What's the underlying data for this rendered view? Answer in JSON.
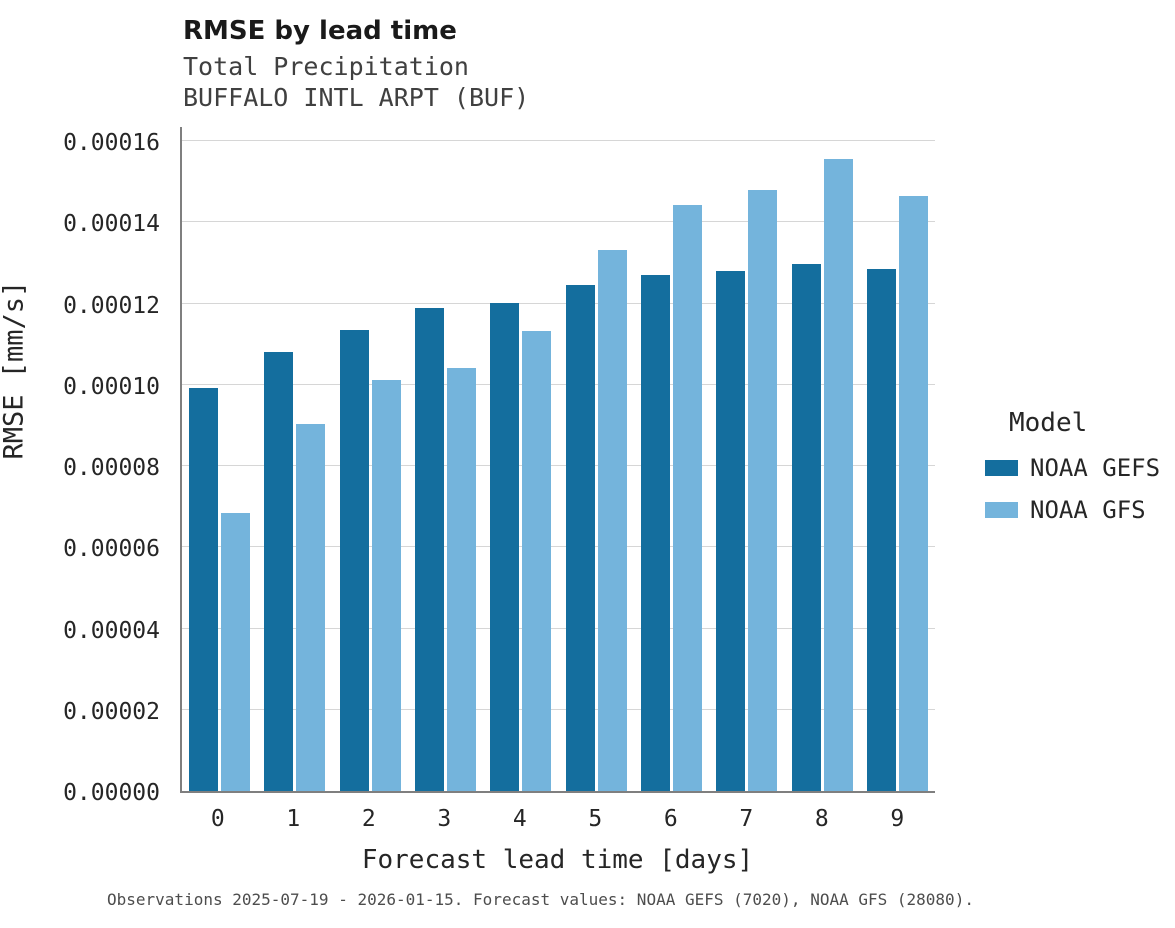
{
  "chart_data": {
    "type": "bar",
    "title": "RMSE by lead time",
    "subtitle_variable": "Total Precipitation",
    "subtitle_station": "BUFFALO INTL ARPT (BUF)",
    "xlabel": "Forecast lead time [days]",
    "ylabel": "RMSE [mm/s]",
    "legend_title": "Model",
    "caption": "Observations 2025-07-19 - 2026-01-15. Forecast values: NOAA GEFS (7020), NOAA GFS (28080).",
    "categories": [
      "0",
      "1",
      "2",
      "3",
      "4",
      "5",
      "6",
      "7",
      "8",
      "9"
    ],
    "series": [
      {
        "name": "NOAA GEFS",
        "color": "#146e9e",
        "values": [
          9.92e-05,
          0.000108,
          0.0001135,
          0.0001189,
          0.0001201,
          0.0001246,
          0.000127,
          0.000128,
          0.0001297,
          0.0001285
        ]
      },
      {
        "name": "NOAA GFS",
        "color": "#74b4dc",
        "values": [
          6.84e-05,
          9.03e-05,
          0.0001012,
          0.0001041,
          0.0001132,
          0.0001332,
          0.0001443,
          0.0001479,
          0.0001555,
          0.0001465
        ]
      }
    ],
    "ylim": [
      0,
      0.00016
    ],
    "yticks": [
      "0.00000",
      "0.00002",
      "0.00004",
      "0.00006",
      "0.00008",
      "0.00010",
      "0.00012",
      "0.00014",
      "0.00016"
    ],
    "grid": "horizontal",
    "legend_position": "right"
  }
}
